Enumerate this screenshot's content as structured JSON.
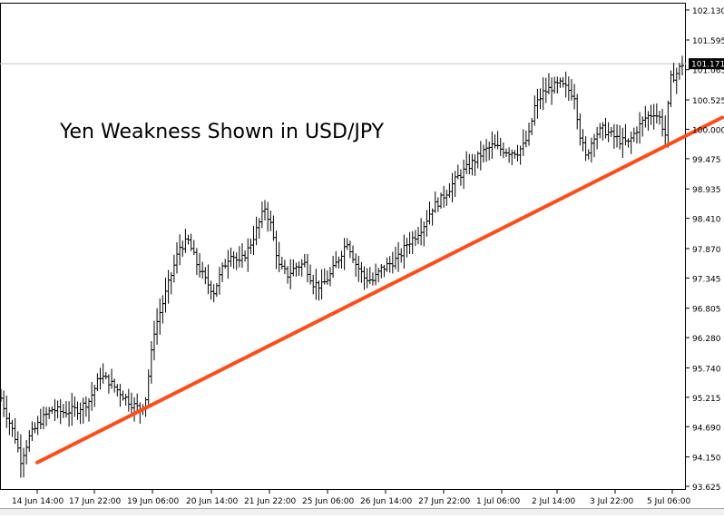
{
  "chart_data": {
    "type": "ohlc",
    "title": "Yen Weakness Shown in USD/JPY",
    "symbol": "USD/JPY",
    "current_price": "101.171",
    "y_ticks": [
      "102.130",
      "101.595",
      "101.065",
      "100.525",
      "100.000",
      "99.475",
      "98.935",
      "98.410",
      "97.870",
      "97.345",
      "96.805",
      "96.280",
      "95.740",
      "95.215",
      "94.690",
      "94.150",
      "93.625"
    ],
    "x_ticks": [
      "14 Jun 14:00",
      "17 Jun 22:00",
      "19 Jun 06:00",
      "20 Jun 14:00",
      "21 Jun 22:00",
      "25 Jun 06:00",
      "26 Jun 14:00",
      "27 Jun 22:00",
      "1 Jul 06:00",
      "2 Jul 14:00",
      "3 Jul 22:00",
      "5 Jul 06:00"
    ],
    "ylim": [
      93.5,
      102.3
    ],
    "grid": false,
    "trendline": {
      "color": "#ff4d1a",
      "from": {
        "x": "14 Jun 14:00",
        "y": 94.05
      },
      "to": {
        "x": "5 Jul 06:00",
        "y": 99.95
      }
    },
    "price_anchors": [
      {
        "t": 0,
        "y": 95.2
      },
      {
        "t": 2,
        "y": 94.9
      },
      {
        "t": 5,
        "y": 94.5
      },
      {
        "t": 7,
        "y": 94.1
      },
      {
        "t": 10,
        "y": 94.5
      },
      {
        "t": 14,
        "y": 94.8
      },
      {
        "t": 18,
        "y": 95.0
      },
      {
        "t": 22,
        "y": 94.95
      },
      {
        "t": 27,
        "y": 95.0
      },
      {
        "t": 31,
        "y": 95.15
      },
      {
        "t": 35,
        "y": 95.6
      },
      {
        "t": 38,
        "y": 95.5
      },
      {
        "t": 42,
        "y": 95.3
      },
      {
        "t": 46,
        "y": 95.1
      },
      {
        "t": 49,
        "y": 95.0
      },
      {
        "t": 51,
        "y": 95.2
      },
      {
        "t": 54,
        "y": 96.4
      },
      {
        "t": 57,
        "y": 96.9
      },
      {
        "t": 60,
        "y": 97.4
      },
      {
        "t": 63,
        "y": 97.9
      },
      {
        "t": 66,
        "y": 98.0
      },
      {
        "t": 69,
        "y": 97.6
      },
      {
        "t": 72,
        "y": 97.3
      },
      {
        "t": 75,
        "y": 97.1
      },
      {
        "t": 78,
        "y": 97.5
      },
      {
        "t": 81,
        "y": 97.8
      },
      {
        "t": 84,
        "y": 97.6
      },
      {
        "t": 87,
        "y": 97.85
      },
      {
        "t": 90,
        "y": 98.2
      },
      {
        "t": 93,
        "y": 98.6
      },
      {
        "t": 95,
        "y": 98.3
      },
      {
        "t": 98,
        "y": 97.55
      },
      {
        "t": 101,
        "y": 97.4
      },
      {
        "t": 104,
        "y": 97.55
      },
      {
        "t": 107,
        "y": 97.6
      },
      {
        "t": 110,
        "y": 97.25
      },
      {
        "t": 113,
        "y": 97.2
      },
      {
        "t": 116,
        "y": 97.4
      },
      {
        "t": 119,
        "y": 97.7
      },
      {
        "t": 122,
        "y": 98.0
      },
      {
        "t": 125,
        "y": 97.6
      },
      {
        "t": 128,
        "y": 97.35
      },
      {
        "t": 131,
        "y": 97.3
      },
      {
        "t": 134,
        "y": 97.5
      },
      {
        "t": 137,
        "y": 97.6
      },
      {
        "t": 140,
        "y": 97.7
      },
      {
        "t": 143,
        "y": 97.95
      },
      {
        "t": 146,
        "y": 98.1
      },
      {
        "t": 149,
        "y": 98.3
      },
      {
        "t": 152,
        "y": 98.6
      },
      {
        "t": 155,
        "y": 98.75
      },
      {
        "t": 158,
        "y": 98.95
      },
      {
        "t": 161,
        "y": 99.15
      },
      {
        "t": 164,
        "y": 99.3
      },
      {
        "t": 167,
        "y": 99.45
      },
      {
        "t": 170,
        "y": 99.6
      },
      {
        "t": 173,
        "y": 99.7
      },
      {
        "t": 176,
        "y": 99.65
      },
      {
        "t": 179,
        "y": 99.6
      },
      {
        "t": 182,
        "y": 99.6
      },
      {
        "t": 184,
        "y": 99.7
      },
      {
        "t": 186,
        "y": 99.9
      },
      {
        "t": 188,
        "y": 100.4
      },
      {
        "t": 191,
        "y": 100.65
      },
      {
        "t": 194,
        "y": 100.75
      },
      {
        "t": 197,
        "y": 100.8
      },
      {
        "t": 200,
        "y": 100.7
      },
      {
        "t": 202,
        "y": 100.6
      },
      {
        "t": 204,
        "y": 99.9
      },
      {
        "t": 206,
        "y": 99.5
      },
      {
        "t": 209,
        "y": 99.9
      },
      {
        "t": 212,
        "y": 100.0
      },
      {
        "t": 215,
        "y": 99.9
      },
      {
        "t": 218,
        "y": 99.8
      },
      {
        "t": 221,
        "y": 99.75
      },
      {
        "t": 224,
        "y": 100.0
      },
      {
        "t": 227,
        "y": 100.2
      },
      {
        "t": 230,
        "y": 100.3
      },
      {
        "t": 232,
        "y": 100.2
      },
      {
        "t": 234,
        "y": 99.9
      },
      {
        "t": 236,
        "y": 100.9
      },
      {
        "t": 238,
        "y": 101.0
      },
      {
        "t": 240,
        "y": 101.17
      }
    ]
  }
}
